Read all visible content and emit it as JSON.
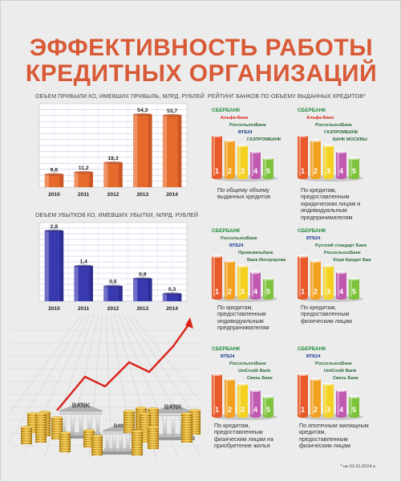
{
  "title": {
    "line1": "ЭФФЕКТИВНОСТЬ РАБОТЫ",
    "line2": "КРЕДИТНЫХ ОРГАНИЗАЦИЙ"
  },
  "colors": {
    "title": "#d85a36",
    "orange": "#e66a2c",
    "blue": "#3a3ab0",
    "rank": [
      "#e85a2a",
      "#f2a020",
      "#f4d020",
      "#c05ab0",
      "#7cc23a"
    ]
  },
  "chart_data": [
    {
      "type": "bar",
      "title": "ОБЪЕМ ПРИБЫЛИ КО, ИМЕВШИХ ПРИБЫЛЬ, МЛРД. РУБЛЕЙ",
      "categories": [
        "2010",
        "2011",
        "2012",
        "2013",
        "2014"
      ],
      "values": [
        9.6,
        11.2,
        18.3,
        54.3,
        53.7
      ],
      "value_labels": [
        "9,6",
        "11,2",
        "18,3",
        "54,3",
        "53,7"
      ],
      "ylim": [
        0,
        60
      ],
      "grid": true
    },
    {
      "type": "bar",
      "title": "ОБЪЕМ УБЫТКОВ КО, ИМЕВШИХ УБЫТКИ, МЛРД. РУБЛЕЙ",
      "categories": [
        "2010",
        "2011",
        "2012",
        "2013",
        "2014"
      ],
      "values": [
        2.8,
        1.4,
        0.6,
        0.9,
        0.3
      ],
      "value_labels": [
        "2,8",
        "1,4",
        "0,6",
        "0,9",
        "0,3"
      ],
      "ylim": [
        0,
        3
      ],
      "grid": true
    }
  ],
  "rating": {
    "title": "РЕЙТИНГ БАНКОВ ПО ОБЪЕМУ ВЫДАННЫХ КРЕДИТОВ*",
    "ranks": [
      "1",
      "2",
      "3",
      "4",
      "5"
    ],
    "panels": [
      {
        "caption": "По общему объему выданных кредитов",
        "banks": [
          "СБЕРБАНК",
          "Альфа-Банк",
          "РоссельхозБанк",
          "ВТБ24",
          "ГАЗПРОМБАНК"
        ]
      },
      {
        "caption": "По кредитам, предоставленным юридическим лицам и индивидуальным предпринимателям",
        "banks": [
          "СБЕРБАНК",
          "Альфа-Банк",
          "РоссельхозБанк",
          "ГАЗПРОМБАНК",
          "БАНК МОСКВЫ"
        ]
      },
      {
        "caption": "По кредитам, предоставленным индивидуальным предпринимателям",
        "banks": [
          "СБЕРБАНК",
          "РоссельхозБанк",
          "ВТБ24",
          "Промсвязьбанк",
          "Банк Интерпромкомстр"
        ]
      },
      {
        "caption": "По кредитам, предоставленным физическим лицам",
        "banks": [
          "СБЕРБАНК",
          "ВТБ24",
          "Русский стандарт Банк",
          "РоссельхозБанк",
          "Хоум Кредит Банк"
        ]
      },
      {
        "caption": "По кредитам, предоставленным физическим лицам на приобретение жилья",
        "banks": [
          "СБЕРБАНК",
          "ВТБ24",
          "РоссельхозБанк",
          "UniCredit Bank",
          "Связь Банк"
        ]
      },
      {
        "caption": "По ипотечным жилищным кредитам, предоставленным физическим лицам",
        "banks": [
          "СБЕРБАНК",
          "ВТБ24",
          "РоссельхозБанк",
          "UniCredit Bank",
          "Связь Банк"
        ]
      }
    ]
  },
  "illustration": {
    "bank_sign": "BANK"
  },
  "footnote": "* на 01.01.2014 г."
}
